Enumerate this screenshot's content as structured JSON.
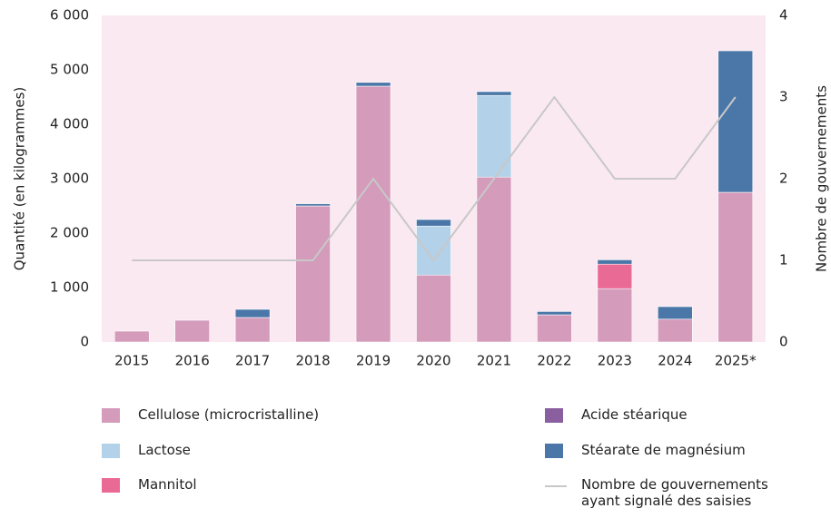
{
  "chart_data": {
    "type": "bar",
    "ylabel": "Quantité (en kilogrammes)",
    "y2label": "Nombre de gouvernements",
    "categories": [
      "2015",
      "2016",
      "2017",
      "2018",
      "2019",
      "2020",
      "2021",
      "2022",
      "2023",
      "2024",
      "2025*"
    ],
    "series": [
      {
        "name": "Cellulose (microcristalline)",
        "color": "#d49bbb",
        "values": [
          200,
          400,
          450,
          2500,
          4700,
          1230,
          3030,
          500,
          980,
          420,
          2750
        ]
      },
      {
        "name": "Lactose",
        "color": "#b3d1e8",
        "values": [
          0,
          0,
          0,
          0,
          0,
          900,
          1500,
          0,
          0,
          0,
          0
        ]
      },
      {
        "name": "Mannitol",
        "color": "#ea6a96",
        "values": [
          0,
          0,
          0,
          0,
          0,
          0,
          0,
          0,
          450,
          0,
          0
        ]
      },
      {
        "name": "Acide stéarique",
        "color": "#8a5fa0",
        "values": [
          0,
          0,
          0,
          0,
          0,
          0,
          0,
          0,
          0,
          0,
          0
        ]
      },
      {
        "name": "Stéarate de magnésium",
        "color": "#4a77a8",
        "values": [
          0,
          0,
          150,
          40,
          70,
          120,
          70,
          60,
          80,
          230,
          2600
        ]
      },
      {
        "name": "Nombre de gouvernements ayant signalé des saisies",
        "color": "#c8c8c8",
        "type": "line",
        "axis": "y2",
        "values": [
          1,
          1,
          1,
          1,
          2,
          1,
          2,
          3,
          2,
          2,
          3
        ]
      }
    ],
    "ylim": [
      0,
      6000
    ],
    "yticks": [
      0,
      {
        "value": 1000,
        "label": "1 000"
      },
      {
        "value": 2000,
        "label": "2 000"
      },
      {
        "value": 3000,
        "label": "3 000"
      },
      {
        "value": 4000,
        "label": "4 000"
      },
      {
        "value": 5000,
        "label": "5 000"
      },
      {
        "value": 6000,
        "label": "6 000"
      }
    ],
    "y2lim": [
      0,
      4
    ],
    "y2ticks": [
      0,
      1,
      2,
      3,
      4
    ],
    "background": "#fbe9f1"
  }
}
